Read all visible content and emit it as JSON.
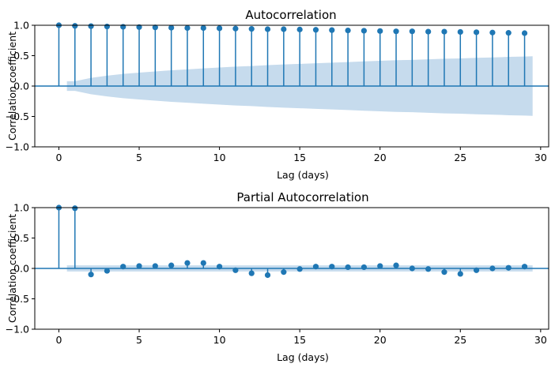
{
  "colors": {
    "stem": "#1f77b4",
    "band": "#c6dbed",
    "axis": "#000000"
  },
  "chart_data": [
    {
      "type": "stem",
      "title": "Autocorrelation",
      "xlabel": "Lag (days)",
      "ylabel": "Correlation coefficient",
      "xlim": [
        -1.5,
        30.5
      ],
      "ylim": [
        -1.0,
        1.0
      ],
      "xticks": [
        "0",
        "5",
        "10",
        "15",
        "20",
        "25",
        "30"
      ],
      "yticks": [
        "1.0",
        "0.5",
        "0.0",
        "−0.5",
        "−1.0"
      ],
      "lags": [
        0,
        1,
        2,
        3,
        4,
        5,
        6,
        7,
        8,
        9,
        10,
        11,
        12,
        13,
        14,
        15,
        16,
        17,
        18,
        19,
        20,
        21,
        22,
        23,
        24,
        25,
        26,
        27,
        28,
        29
      ],
      "values": [
        1.0,
        0.99,
        0.985,
        0.98,
        0.975,
        0.97,
        0.965,
        0.96,
        0.955,
        0.955,
        0.95,
        0.945,
        0.94,
        0.935,
        0.935,
        0.93,
        0.925,
        0.92,
        0.915,
        0.91,
        0.905,
        0.9,
        0.9,
        0.895,
        0.895,
        0.89,
        0.885,
        0.88,
        0.875,
        0.87
      ],
      "confidence_band": {
        "x": [
          0.5,
          1,
          2,
          3,
          4,
          5,
          6,
          7,
          8,
          9,
          10,
          11,
          12,
          13,
          14,
          15,
          16,
          17,
          18,
          19,
          20,
          21,
          22,
          23,
          24,
          25,
          26,
          27,
          28,
          29,
          29.5
        ],
        "upper": [
          0.08,
          0.08,
          0.135,
          0.17,
          0.2,
          0.22,
          0.24,
          0.26,
          0.275,
          0.29,
          0.305,
          0.32,
          0.33,
          0.345,
          0.355,
          0.365,
          0.375,
          0.385,
          0.395,
          0.405,
          0.415,
          0.425,
          0.43,
          0.44,
          0.45,
          0.455,
          0.465,
          0.47,
          0.48,
          0.485,
          0.49
        ]
      }
    },
    {
      "type": "stem",
      "title": "Partial Autocorrelation",
      "xlabel": "Lag (days)",
      "ylabel": "Correlation coefficient",
      "xlim": [
        -1.5,
        30.5
      ],
      "ylim": [
        -1.0,
        1.0
      ],
      "xticks": [
        "0",
        "5",
        "10",
        "15",
        "20",
        "25",
        "30"
      ],
      "yticks": [
        "1.0",
        "0.5",
        "0.0",
        "−0.5",
        "−1.0"
      ],
      "lags": [
        0,
        1,
        2,
        3,
        4,
        5,
        6,
        7,
        8,
        9,
        10,
        11,
        12,
        13,
        14,
        15,
        16,
        17,
        18,
        19,
        20,
        21,
        22,
        23,
        24,
        25,
        26,
        27,
        28,
        29
      ],
      "values": [
        1.0,
        0.99,
        -0.1,
        -0.04,
        0.03,
        0.04,
        0.04,
        0.05,
        0.09,
        0.09,
        0.03,
        -0.03,
        -0.08,
        -0.11,
        -0.06,
        -0.01,
        0.03,
        0.03,
        0.02,
        0.02,
        0.04,
        0.05,
        0.0,
        -0.01,
        -0.06,
        -0.09,
        -0.03,
        0.0,
        0.01,
        0.03
      ],
      "confidence_band": {
        "x": [
          0.5,
          29.5
        ],
        "upper": [
          0.05,
          0.05
        ]
      }
    }
  ]
}
